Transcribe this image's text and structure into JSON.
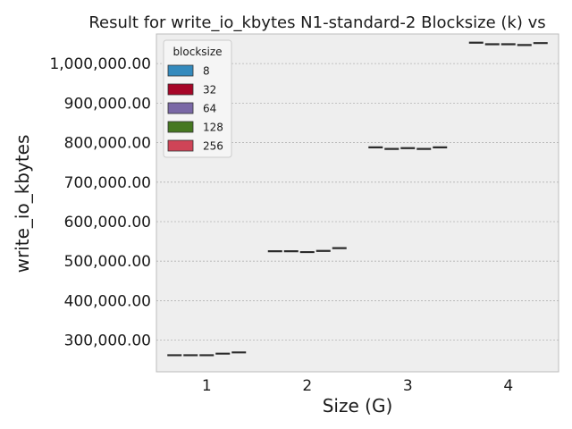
{
  "chart_data": {
    "type": "box",
    "title": "Result for write_io_kbytes N1-standard-2 Blocksize (k) vs",
    "xlabel": "Size (G)",
    "ylabel": "write_io_kbytes",
    "categories": [
      "1",
      "2",
      "3",
      "4"
    ],
    "ylim": [
      220000,
      1075000
    ],
    "yticks": [
      300000,
      400000,
      500000,
      600000,
      700000,
      800000,
      900000,
      1000000
    ],
    "ytick_labels": [
      "300,000.00",
      "400,000.00",
      "500,000.00",
      "600,000.00",
      "700,000.00",
      "800,000.00",
      "900,000.00",
      "1,000,000.00"
    ],
    "grid": true,
    "legend": {
      "title": "blocksize",
      "placement": "top-left"
    },
    "series": [
      {
        "name": "8",
        "color": "#348ABD",
        "values": [
          262000,
          525000,
          788000,
          1053000
        ]
      },
      {
        "name": "32",
        "color": "#A60628",
        "values": [
          262000,
          525000,
          784000,
          1049000
        ]
      },
      {
        "name": "64",
        "color": "#7A68A6",
        "values": [
          262000,
          523000,
          786000,
          1049000
        ]
      },
      {
        "name": "128",
        "color": "#467821",
        "values": [
          266000,
          526000,
          784000,
          1047000
        ]
      },
      {
        "name": "256",
        "color": "#CF4457",
        "values": [
          269000,
          533000,
          788000,
          1052000
        ]
      }
    ]
  }
}
